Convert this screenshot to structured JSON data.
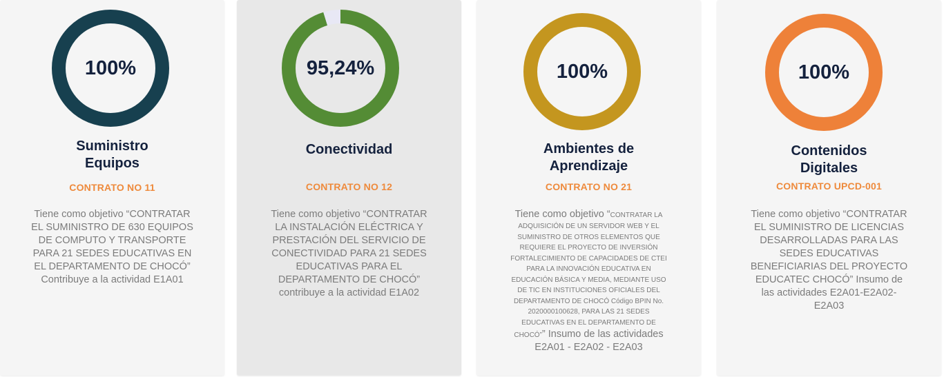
{
  "cards": [
    {
      "percent_label": "100%",
      "progress": 1.0,
      "color": "#17404f",
      "title_line1": "Suministro",
      "title_line2": "Equipos",
      "contract": "CONTRATO NO 11",
      "desc_lines": [
        "Tiene como objetivo “CONTRATAR",
        "EL SUMINISTRO DE 630 EQUIPOS",
        "DE COMPUTO Y TRANSPORTE",
        "PARA 21 SEDES EDUCATIVAS EN",
        "EL DEPARTAMENTO DE CHOCÓ”",
        "Contribuye a la actividad E1A01"
      ]
    },
    {
      "percent_label": "95,24%",
      "progress": 0.9524,
      "color": "#548c35",
      "remainder_color": "#e8e8f5",
      "title_line1": "Conectividad",
      "contract": "CONTRATO NO 12",
      "desc_lines": [
        "Tiene como objetivo “CONTRATAR",
        "LA INSTALACIÓN ELÉCTRICA Y",
        "PRESTACIÓN DEL SERVICIO DE",
        "CONECTIVIDAD PARA 21 SEDES",
        "EDUCATIVAS PARA EL",
        "DEPARTAMENTO DE CHOCÓ”",
        "contribuye a la actividad E1A02"
      ]
    },
    {
      "percent_label": "100%",
      "progress": 1.0,
      "color": "#c4961f",
      "title_line1": "Ambientes de",
      "title_line2": "Aprendizaje",
      "contract": "CONTRATO NO 21",
      "desc_prefix": "Tiene como objetivo “",
      "desc_small_first": "CONTRATAR LA",
      "desc_small_lines": [
        "ADQUISICIÓN DE UN SERVIDOR WEB Y EL",
        "SUMINISTRO DE OTROS ELEMENTOS QUE",
        "REQUIERE EL PROYECTO DE INVERSIÓN",
        "FORTALECIMIENTO DE CAPACIDADES DE CTEI",
        "PARA LA INNOVACIÓN EDUCATIVA EN",
        "EDUCACIÓN BÁSICA Y MEDIA, MEDIANTE USO",
        "DE TIC EN INSTITUCIONES OFICIALES DEL",
        "DEPARTAMENTO DE CHOCÓ Código BPIN No.",
        "2020000100628, PARA LAS 21 SEDES",
        "EDUCATIVAS EN EL DEPARTAMENTO DE"
      ],
      "desc_small_last": "CHOCÓ”",
      "desc_tail1": "” Insumo de las actividades",
      "desc_tail2": "E2A01 - E2A02 - E2A03"
    },
    {
      "percent_label": "100%",
      "progress": 1.0,
      "color": "#ee8139",
      "title_line1": "Contenidos",
      "title_line2": "Digitales",
      "contract": "CONTRATO UPCD-001",
      "desc_lines": [
        "Tiene como objetivo “CONTRATAR",
        "EL SUMINISTRO DE LICENCIAS",
        "DESARROLLADAS PARA LAS",
        "SEDES EDUCATIVAS",
        "BENEFICIARIAS DEL PROYECTO",
        "EDUCATEC CHOCÓ” Insumo de",
        "las actividades E2A01-E2A02-",
        "E2A03"
      ]
    }
  ]
}
